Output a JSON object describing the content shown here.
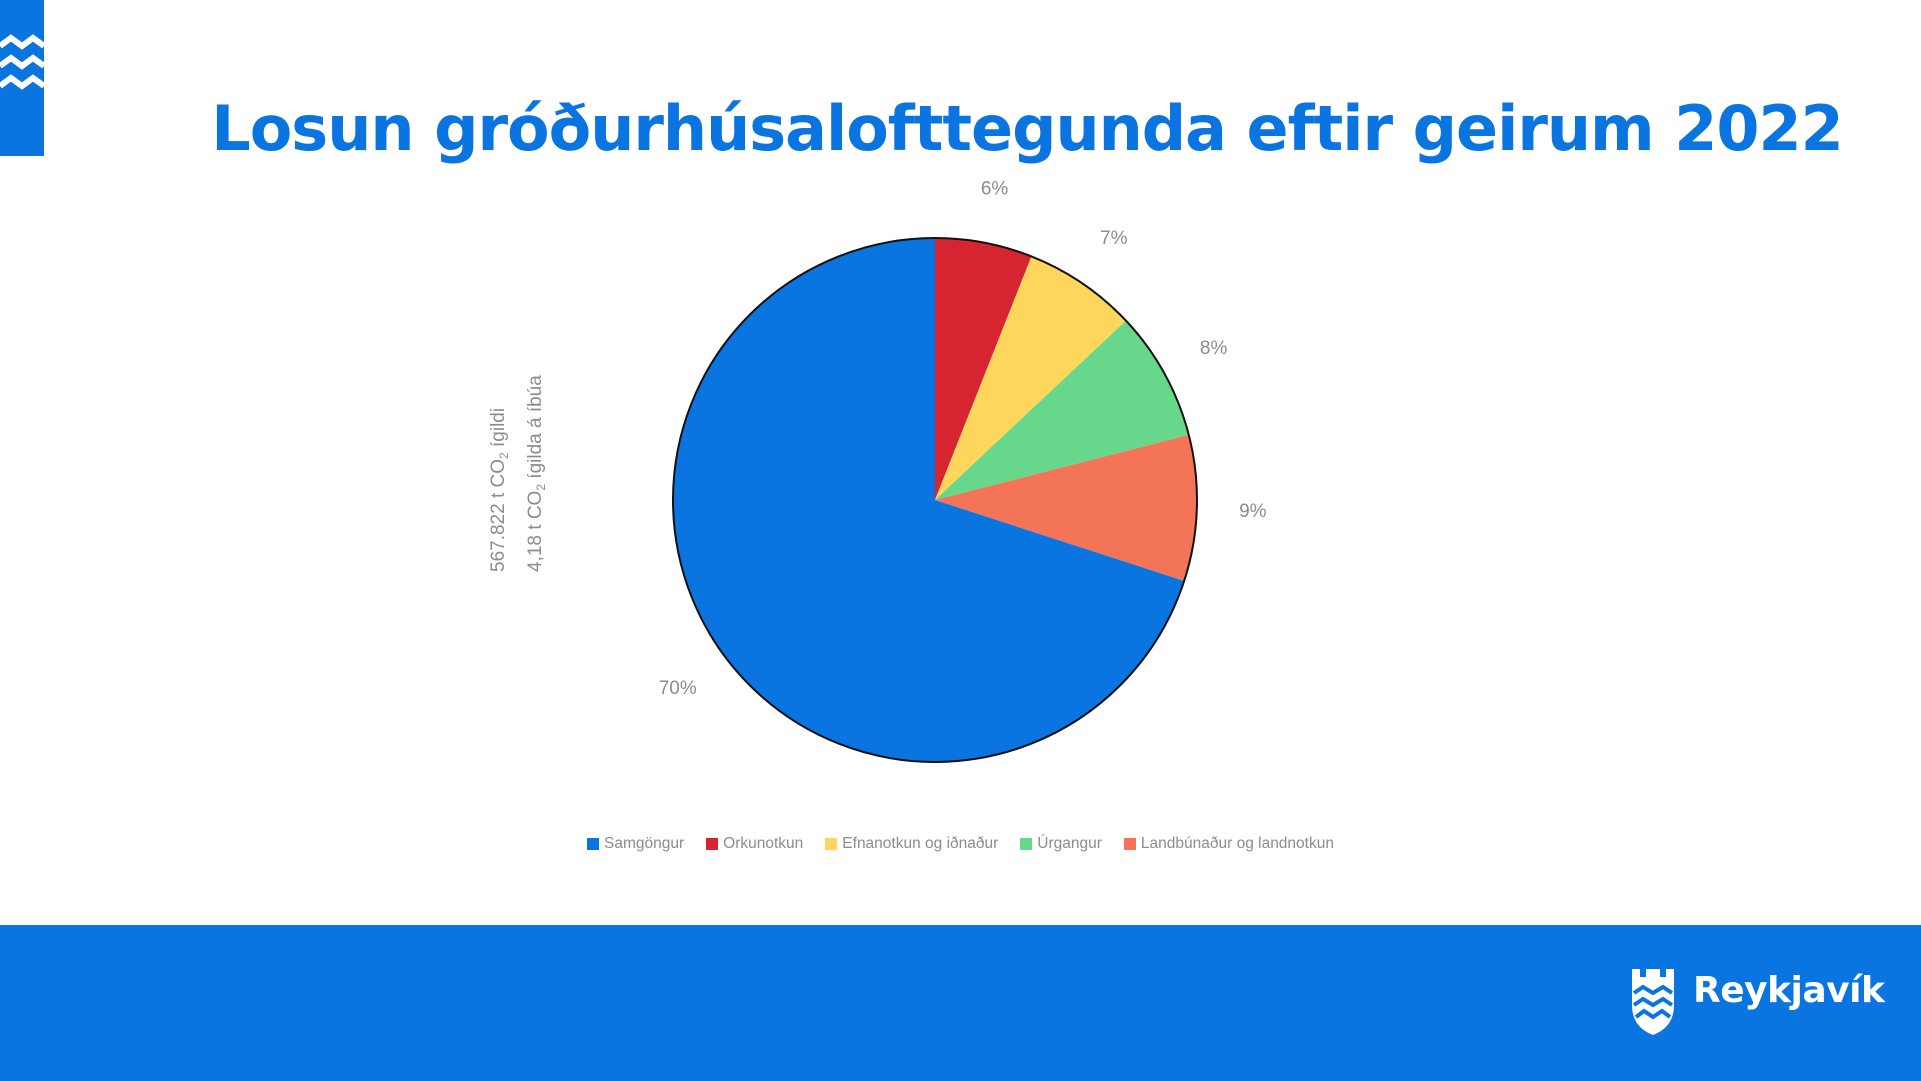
{
  "slide": {
    "title": "Losun gróðurhúsalofttegunda eftir geirum 2022",
    "side_note_1": "567.822 t CO",
    "side_note_1_sub": "2",
    "side_note_1_tail": " ígildi",
    "side_note_2": "4,18 t CO",
    "side_note_2_sub": "2",
    "side_note_2_tail": " ígilda á íbúa",
    "brand": "Reykjavík",
    "brand_color": "#0a74e1"
  },
  "chart_data": {
    "type": "pie",
    "title": "",
    "start_angle_deg": 0,
    "direction": "clockwise",
    "slices": [
      {
        "label": "Orkunotkun",
        "value": 6,
        "display": "6%",
        "color": "#d62430"
      },
      {
        "label": "Efnanotkun og iðnaður",
        "value": 7,
        "display": "7%",
        "color": "#fdd65b"
      },
      {
        "label": "Úrgangur",
        "value": 8,
        "display": "8%",
        "color": "#67d88b"
      },
      {
        "label": "Landbúnaður og landnotkun",
        "value": 9,
        "display": "9%",
        "color": "#f47458"
      },
      {
        "label": "Samgöngur",
        "value": 70,
        "display": "70%",
        "color": "#0a74e1"
      }
    ],
    "legend_order": [
      "Samgöngur",
      "Orkunotkun",
      "Efnanotkun og iðnaður",
      "Úrgangur",
      "Landbúnaður og landnotkun"
    ],
    "legend_position": "bottom"
  }
}
